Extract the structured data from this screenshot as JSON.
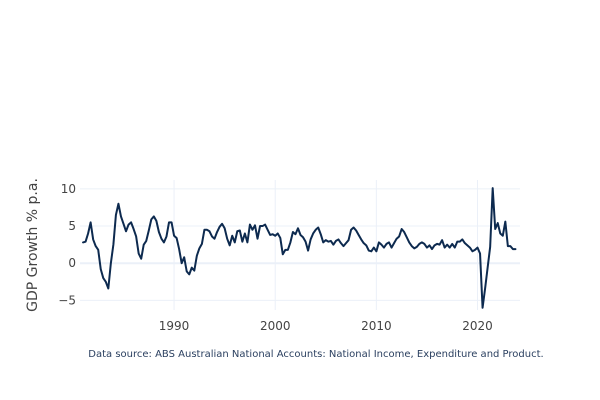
{
  "chart_data": {
    "type": "line",
    "xlabel": "",
    "ylabel": "GDP Growth % p.a.",
    "xlim": [
      1980.7,
      2024.2
    ],
    "ylim": [
      -6.3,
      11.2
    ],
    "xticks": [
      1990,
      2000,
      2010,
      2020
    ],
    "xtick_labels": [
      "1990",
      "2000",
      "2010",
      "2020"
    ],
    "yticks": [
      -5,
      0,
      5,
      10
    ],
    "ytick_labels": [
      "−5",
      "0",
      "5",
      "10"
    ],
    "grid": true,
    "legend": "none",
    "annotation": "Data source: ABS Australian National Accounts: National Income, Expenditure and Product.",
    "series": [
      {
        "line_color": "#0d2a4f",
        "x": [
          1981.0,
          1981.25,
          1981.5,
          1981.75,
          1982.0,
          1982.25,
          1982.5,
          1982.75,
          1983.0,
          1983.25,
          1983.5,
          1983.75,
          1984.0,
          1984.25,
          1984.5,
          1984.75,
          1985.0,
          1985.25,
          1985.5,
          1985.75,
          1986.0,
          1986.25,
          1986.5,
          1986.75,
          1987.0,
          1987.25,
          1987.5,
          1987.75,
          1988.0,
          1988.25,
          1988.5,
          1988.75,
          1989.0,
          1989.25,
          1989.5,
          1989.75,
          1990.0,
          1990.25,
          1990.5,
          1990.75,
          1991.0,
          1991.25,
          1991.5,
          1991.75,
          1992.0,
          1992.25,
          1992.5,
          1992.75,
          1993.0,
          1993.25,
          1993.5,
          1993.75,
          1994.0,
          1994.25,
          1994.5,
          1994.75,
          1995.0,
          1995.25,
          1995.5,
          1995.75,
          1996.0,
          1996.25,
          1996.5,
          1996.75,
          1997.0,
          1997.25,
          1997.5,
          1997.75,
          1998.0,
          1998.25,
          1998.5,
          1998.75,
          1999.0,
          1999.25,
          1999.5,
          1999.75,
          2000.0,
          2000.25,
          2000.5,
          2000.75,
          2001.0,
          2001.25,
          2001.5,
          2001.75,
          2002.0,
          2002.25,
          2002.5,
          2002.75,
          2003.0,
          2003.25,
          2003.5,
          2003.75,
          2004.0,
          2004.25,
          2004.5,
          2004.75,
          2005.0,
          2005.25,
          2005.5,
          2005.75,
          2006.0,
          2006.25,
          2006.5,
          2006.75,
          2007.0,
          2007.25,
          2007.5,
          2007.75,
          2008.0,
          2008.25,
          2008.5,
          2008.75,
          2009.0,
          2009.25,
          2009.5,
          2009.75,
          2010.0,
          2010.25,
          2010.5,
          2010.75,
          2011.0,
          2011.25,
          2011.5,
          2011.75,
          2012.0,
          2012.25,
          2012.5,
          2012.75,
          2013.0,
          2013.25,
          2013.5,
          2013.75,
          2014.0,
          2014.25,
          2014.5,
          2014.75,
          2015.0,
          2015.25,
          2015.5,
          2015.75,
          2016.0,
          2016.25,
          2016.5,
          2016.75,
          2017.0,
          2017.25,
          2017.5,
          2017.75,
          2018.0,
          2018.25,
          2018.5,
          2018.75,
          2019.0,
          2019.25,
          2019.5,
          2019.75,
          2020.0,
          2020.25,
          2020.5,
          2020.75,
          2021.0,
          2021.25,
          2021.5,
          2021.75,
          2022.0,
          2022.25,
          2022.5,
          2022.75,
          2023.0,
          2023.25,
          2023.5,
          2023.75
        ],
        "values": [
          2.8,
          2.9,
          4.0,
          5.5,
          3.2,
          2.3,
          1.8,
          -0.8,
          -2.0,
          -2.5,
          -3.4,
          0.0,
          2.5,
          6.5,
          8.0,
          6.3,
          5.3,
          4.3,
          5.2,
          5.5,
          4.6,
          3.6,
          1.3,
          0.6,
          2.5,
          3.0,
          4.4,
          5.9,
          6.3,
          5.7,
          4.2,
          3.3,
          2.8,
          3.6,
          5.5,
          5.5,
          3.7,
          3.4,
          1.9,
          0.0,
          0.8,
          -1.1,
          -1.5,
          -0.6,
          -1.0,
          1.0,
          2.0,
          2.6,
          4.5,
          4.5,
          4.3,
          3.6,
          3.3,
          4.2,
          4.9,
          5.3,
          4.7,
          3.3,
          2.4,
          3.7,
          2.8,
          4.3,
          4.4,
          2.9,
          4.0,
          2.8,
          5.2,
          4.5,
          5.1,
          3.3,
          5.0,
          5.0,
          5.2,
          4.5,
          3.8,
          3.9,
          3.7,
          4.0,
          3.4,
          1.2,
          1.8,
          1.8,
          2.8,
          4.2,
          3.9,
          4.7,
          3.8,
          3.5,
          2.9,
          1.7,
          3.2,
          4.0,
          4.5,
          4.8,
          3.9,
          2.8,
          3.1,
          2.9,
          3.0,
          2.5,
          3.0,
          3.2,
          2.7,
          2.3,
          2.7,
          3.1,
          4.5,
          4.8,
          4.4,
          3.8,
          3.2,
          2.7,
          2.4,
          1.7,
          1.6,
          2.1,
          1.6,
          2.8,
          2.5,
          2.1,
          2.6,
          2.8,
          2.1,
          2.7,
          3.3,
          3.6,
          4.6,
          4.2,
          3.5,
          2.8,
          2.3,
          2.0,
          2.2,
          2.6,
          2.8,
          2.6,
          2.1,
          2.4,
          1.9,
          2.4,
          2.6,
          2.5,
          3.1,
          2.1,
          2.5,
          2.1,
          2.6,
          2.1,
          2.9,
          2.9,
          3.2,
          2.7,
          2.4,
          2.1,
          1.6,
          1.8,
          2.1,
          1.3,
          -6.0,
          -3.4,
          -0.6,
          2.2,
          10.1,
          4.6,
          5.4,
          4.0,
          3.7,
          5.6,
          2.3,
          2.3,
          1.9,
          1.9
        ]
      }
    ]
  }
}
